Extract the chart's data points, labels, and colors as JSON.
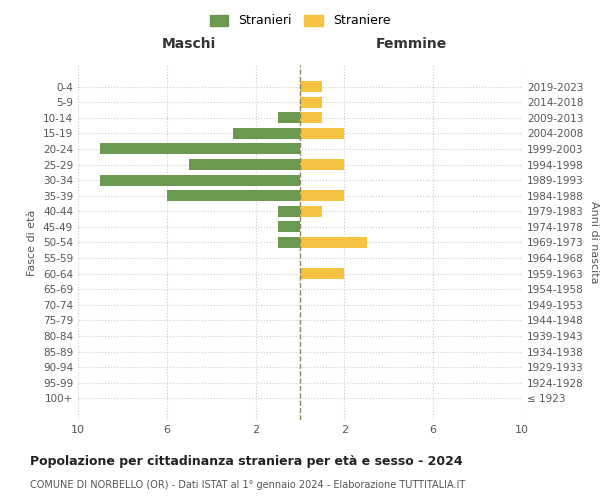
{
  "age_groups": [
    "100+",
    "95-99",
    "90-94",
    "85-89",
    "80-84",
    "75-79",
    "70-74",
    "65-69",
    "60-64",
    "55-59",
    "50-54",
    "45-49",
    "40-44",
    "35-39",
    "30-34",
    "25-29",
    "20-24",
    "15-19",
    "10-14",
    "5-9",
    "0-4"
  ],
  "birth_years": [
    "≤ 1923",
    "1924-1928",
    "1929-1933",
    "1934-1938",
    "1939-1943",
    "1944-1948",
    "1949-1953",
    "1954-1958",
    "1959-1963",
    "1964-1968",
    "1969-1973",
    "1974-1978",
    "1979-1983",
    "1984-1988",
    "1989-1993",
    "1994-1998",
    "1999-2003",
    "2004-2008",
    "2009-2013",
    "2014-2018",
    "2019-2023"
  ],
  "males": [
    0,
    0,
    0,
    0,
    0,
    0,
    0,
    0,
    0,
    0,
    1,
    1,
    1,
    6,
    9,
    5,
    9,
    3,
    1,
    0,
    0
  ],
  "females": [
    0,
    0,
    0,
    0,
    0,
    0,
    0,
    0,
    2,
    0,
    3,
    0,
    1,
    2,
    0,
    2,
    0,
    2,
    1,
    1,
    1
  ],
  "male_color": "#6a9a50",
  "female_color": "#f5c242",
  "male_label": "Stranieri",
  "female_label": "Straniere",
  "xlabel_left": "Maschi",
  "xlabel_right": "Femmine",
  "ylabel_left": "Fasce di età",
  "ylabel_right": "Anni di nascita",
  "xlim": 10,
  "xtick_positions": [
    -10,
    -6,
    -2,
    2,
    6,
    10
  ],
  "xtick_labels": [
    "10",
    "6",
    "2",
    "2",
    "6",
    "10"
  ],
  "title": "Popolazione per cittadinanza straniera per età e sesso - 2024",
  "subtitle": "COMUNE DI NORBELLO (OR) - Dati ISTAT al 1° gennaio 2024 - Elaborazione TUTTITALIA.IT",
  "background_color": "#ffffff",
  "grid_color": "#cccccc",
  "center_line_color": "#888855"
}
